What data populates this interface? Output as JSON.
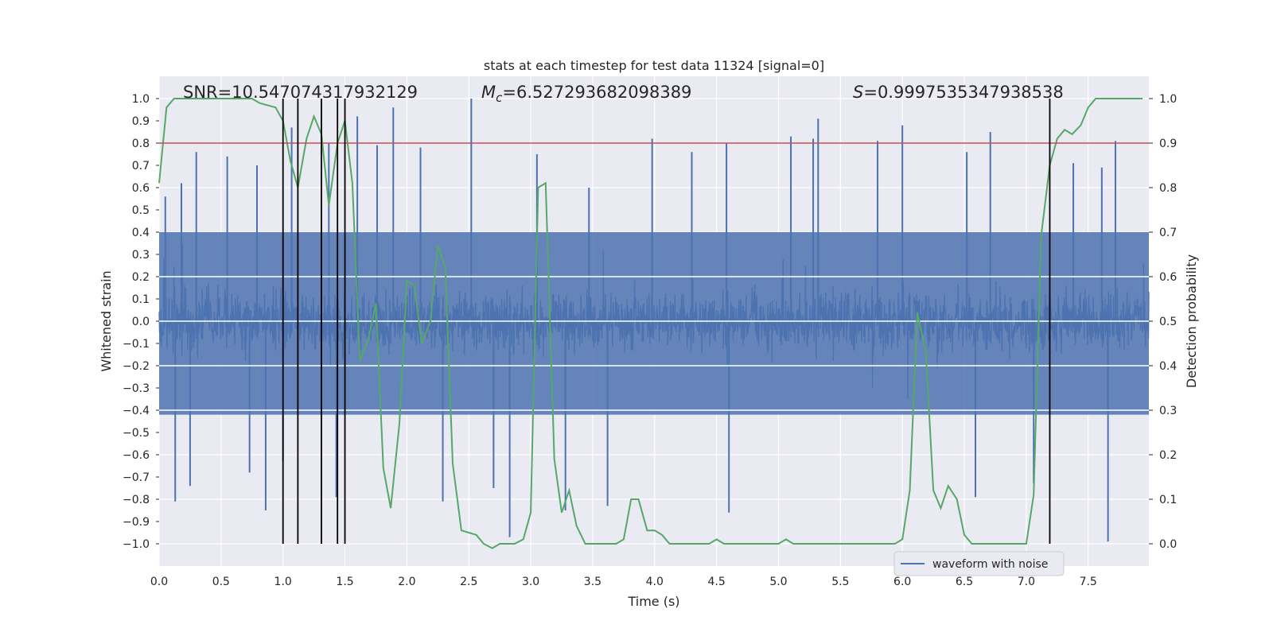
{
  "chart_data": {
    "type": "line",
    "title": "stats at each timestep for test data 11324 [signal=0]",
    "xlabel": "Time (s)",
    "ylabel": "Whitened strain",
    "y2label": "Detection probability",
    "xlim": [
      0.0,
      7.99
    ],
    "ylim": [
      -1.1,
      1.1
    ],
    "y2lim": [
      -0.05,
      1.05
    ],
    "grid": true,
    "x_ticks": [
      "0.0",
      "0.5",
      "1.0",
      "1.5",
      "2.0",
      "2.5",
      "3.0",
      "3.5",
      "4.0",
      "4.5",
      "5.0",
      "5.5",
      "6.0",
      "6.5",
      "7.0",
      "7.5"
    ],
    "x_tick_values": [
      0.0,
      0.5,
      1.0,
      1.5,
      2.0,
      2.5,
      3.0,
      3.5,
      4.0,
      4.5,
      5.0,
      5.5,
      6.0,
      6.5,
      7.0,
      7.5
    ],
    "y_ticks": [
      "1.0",
      "0.9",
      "0.8",
      "0.7",
      "0.6",
      "0.5",
      "0.4",
      "0.3",
      "0.2",
      "0.1",
      "0.0",
      "−0.1",
      "−0.2",
      "−0.3",
      "−0.4",
      "−0.5",
      "−0.6",
      "−0.7",
      "−0.8",
      "−0.9",
      "−1.0"
    ],
    "y_tick_values": [
      1.0,
      0.9,
      0.8,
      0.7,
      0.6,
      0.5,
      0.4,
      0.3,
      0.2,
      0.1,
      0.0,
      -0.1,
      -0.2,
      -0.3,
      -0.4,
      -0.5,
      -0.6,
      -0.7,
      -0.8,
      -0.9,
      -1.0
    ],
    "y2_ticks": [
      "1.0",
      "0.9",
      "0.8",
      "0.7",
      "0.6",
      "0.5",
      "0.4",
      "0.3",
      "0.2",
      "0.1",
      "0.0"
    ],
    "y2_tick_values": [
      1.0,
      0.9,
      0.8,
      0.7,
      0.6,
      0.5,
      0.4,
      0.3,
      0.2,
      0.1,
      0.0
    ],
    "annotations": {
      "snr": "SNR=10.547074317932129",
      "mc_symbol": "M",
      "mc_subscript": "c",
      "mc_value": "=6.527293682098389",
      "s_symbol": "S",
      "s_value": "=0.9997535347938538"
    },
    "threshold": {
      "axis": "y2",
      "value": 0.9,
      "color": "#c44e52"
    },
    "vlines": [
      1.0,
      1.12,
      1.31,
      1.44,
      1.5,
      7.19
    ],
    "vline_range": [
      -1.0,
      1.0
    ],
    "legend": {
      "label": "waveform with noise",
      "placement": "lower-right"
    },
    "series": [
      {
        "name": "waveform with noise",
        "axis": "y",
        "style": "noise",
        "color": "#4c72b0",
        "duration": 7.99,
        "sample_rate_shown": 2048,
        "envelope_typical": [
          -0.42,
          0.4
        ],
        "peaks": [
          {
            "x": 0.05,
            "y": 0.56
          },
          {
            "x": 0.13,
            "y": -0.81
          },
          {
            "x": 0.18,
            "y": 0.62
          },
          {
            "x": 0.25,
            "y": -0.74
          },
          {
            "x": 0.3,
            "y": 0.76
          },
          {
            "x": 0.55,
            "y": 0.74
          },
          {
            "x": 0.73,
            "y": -0.68
          },
          {
            "x": 0.79,
            "y": 0.7
          },
          {
            "x": 0.86,
            "y": -0.85
          },
          {
            "x": 1.0,
            "y": -0.63
          },
          {
            "x": 1.07,
            "y": 0.87
          },
          {
            "x": 1.37,
            "y": 0.8
          },
          {
            "x": 1.43,
            "y": -0.79
          },
          {
            "x": 1.6,
            "y": 0.92
          },
          {
            "x": 1.76,
            "y": 0.79
          },
          {
            "x": 1.89,
            "y": 0.96
          },
          {
            "x": 2.11,
            "y": 0.78
          },
          {
            "x": 2.29,
            "y": -0.81
          },
          {
            "x": 2.52,
            "y": 1.0
          },
          {
            "x": 2.7,
            "y": -0.75
          },
          {
            "x": 2.83,
            "y": -0.97
          },
          {
            "x": 3.05,
            "y": 0.75
          },
          {
            "x": 3.28,
            "y": -0.85
          },
          {
            "x": 3.47,
            "y": 0.6
          },
          {
            "x": 3.62,
            "y": -0.83
          },
          {
            "x": 3.98,
            "y": 0.82
          },
          {
            "x": 4.3,
            "y": 0.76
          },
          {
            "x": 4.58,
            "y": 0.8
          },
          {
            "x": 4.6,
            "y": -0.86
          },
          {
            "x": 5.1,
            "y": 0.83
          },
          {
            "x": 5.28,
            "y": 0.82
          },
          {
            "x": 5.32,
            "y": 0.91
          },
          {
            "x": 5.8,
            "y": 0.81
          },
          {
            "x": 6.0,
            "y": 0.88
          },
          {
            "x": 6.52,
            "y": 0.76
          },
          {
            "x": 6.59,
            "y": -0.79
          },
          {
            "x": 6.71,
            "y": 0.85
          },
          {
            "x": 7.06,
            "y": -0.73
          },
          {
            "x": 7.38,
            "y": 0.71
          },
          {
            "x": 7.61,
            "y": 0.69
          },
          {
            "x": 7.66,
            "y": -0.99
          },
          {
            "x": 7.72,
            "y": 0.81
          }
        ]
      },
      {
        "name": "detection probability",
        "axis": "y2",
        "color": "#55a868",
        "x": [
          0.0,
          0.06,
          0.12,
          0.25,
          0.37,
          0.5,
          0.62,
          0.75,
          0.81,
          0.94,
          1.0,
          1.06,
          1.12,
          1.19,
          1.25,
          1.31,
          1.37,
          1.44,
          1.5,
          1.56,
          1.62,
          1.69,
          1.75,
          1.81,
          1.87,
          1.94,
          2.0,
          2.06,
          2.12,
          2.19,
          2.25,
          2.31,
          2.37,
          2.44,
          2.56,
          2.62,
          2.69,
          2.75,
          2.87,
          2.94,
          3.0,
          3.06,
          3.12,
          3.19,
          3.25,
          3.31,
          3.37,
          3.44,
          3.5,
          3.62,
          3.69,
          3.75,
          3.81,
          3.87,
          3.94,
          4.0,
          4.06,
          4.12,
          4.19,
          4.25,
          4.37,
          4.44,
          4.5,
          4.56,
          4.62,
          4.69,
          4.75,
          4.81,
          4.87,
          4.94,
          5.0,
          5.06,
          5.12,
          5.19,
          5.25,
          5.31,
          5.37,
          5.44,
          5.56,
          5.62,
          5.69,
          5.75,
          5.81,
          5.87,
          5.94,
          6.0,
          6.06,
          6.12,
          6.19,
          6.25,
          6.31,
          6.37,
          6.44,
          6.5,
          6.56,
          6.62,
          6.69,
          6.75,
          6.81,
          6.87,
          6.94,
          7.0,
          7.06,
          7.12,
          7.19,
          7.25,
          7.31,
          7.37,
          7.44,
          7.5,
          7.56,
          7.62,
          7.69,
          7.75,
          7.81,
          7.87,
          7.94
        ],
        "values": [
          0.81,
          0.98,
          1.0,
          1.0,
          1.0,
          1.0,
          1.0,
          1.0,
          0.99,
          0.98,
          0.95,
          0.86,
          0.8,
          0.91,
          0.96,
          0.92,
          0.76,
          0.9,
          0.95,
          0.81,
          0.41,
          0.46,
          0.54,
          0.17,
          0.08,
          0.27,
          0.59,
          0.58,
          0.45,
          0.5,
          0.67,
          0.62,
          0.18,
          0.03,
          0.02,
          0.0,
          -0.01,
          0.0,
          0.0,
          0.01,
          0.07,
          0.8,
          0.81,
          0.19,
          0.07,
          0.12,
          0.04,
          0.0,
          0.0,
          0.0,
          0.0,
          0.01,
          0.1,
          0.1,
          0.03,
          0.03,
          0.02,
          0.0,
          0.0,
          0.0,
          0.0,
          0.0,
          0.01,
          0.0,
          0.0,
          0.0,
          0.0,
          0.0,
          0.0,
          0.0,
          0.0,
          0.01,
          0.0,
          0.0,
          0.0,
          0.0,
          0.0,
          0.0,
          0.0,
          0.0,
          0.0,
          0.0,
          0.0,
          0.0,
          0.0,
          0.01,
          0.12,
          0.52,
          0.43,
          0.12,
          0.08,
          0.13,
          0.1,
          0.02,
          0.0,
          0.0,
          0.0,
          0.0,
          0.0,
          0.0,
          0.0,
          0.0,
          0.11,
          0.69,
          0.85,
          0.91,
          0.93,
          0.92,
          0.94,
          0.98,
          1.0,
          1.0,
          1.0,
          1.0,
          1.0,
          1.0,
          1.0
        ]
      }
    ]
  }
}
